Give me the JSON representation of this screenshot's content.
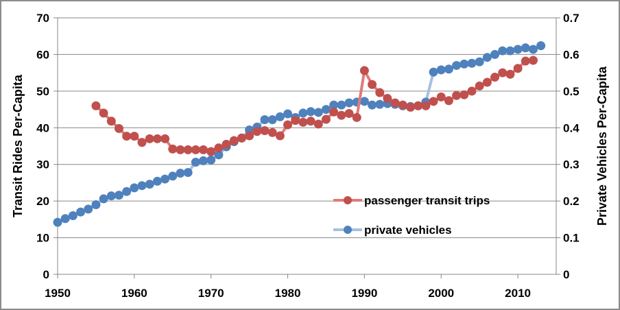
{
  "chart_data": {
    "type": "line",
    "title": "",
    "xlabel": "",
    "ylabel": "Transit Rides Per-Capita",
    "y2label": "Private Vehicles Per-Capita",
    "xlim": [
      1950,
      2015
    ],
    "ylim": [
      0,
      70
    ],
    "y2lim": [
      0,
      0.7
    ],
    "x_ticks": [
      "1950",
      "1960",
      "1970",
      "1980",
      "1990",
      "2000",
      "2010"
    ],
    "x_tick_values": [
      1950,
      1960,
      1970,
      1980,
      1990,
      2000,
      2010
    ],
    "y_ticks": [
      "0",
      "10",
      "20",
      "30",
      "40",
      "50",
      "60",
      "70"
    ],
    "y_tick_values": [
      0,
      10,
      20,
      30,
      40,
      50,
      60,
      70
    ],
    "y2_ticks": [
      "0",
      "0.1",
      "0.2",
      "0.3",
      "0.4",
      "0.5",
      "0.6",
      "0.7"
    ],
    "y2_tick_values": [
      0,
      0.1,
      0.2,
      0.3,
      0.4,
      0.5,
      0.6,
      0.7
    ],
    "grid": true,
    "legend_position": "center-right",
    "series": [
      {
        "name": "passenger transit trips",
        "axis": "primary",
        "color": "#c0504d",
        "line_color": "#e07b79",
        "x_start": 1955,
        "values": [
          46.0,
          44.0,
          41.8,
          39.8,
          37.7,
          37.7,
          36.0,
          37.0,
          37.0,
          37.0,
          34.2,
          34.0,
          34.0,
          34.0,
          34.0,
          33.5,
          34.5,
          35.5,
          36.5,
          37.2,
          37.8,
          39.0,
          39.2,
          38.7,
          37.8,
          40.8,
          42.0,
          41.5,
          41.8,
          41.0,
          42.3,
          44.3,
          43.4,
          43.9,
          42.8,
          55.6,
          51.8,
          49.6,
          48.0,
          46.8,
          46.2,
          45.6,
          46.0,
          46.0,
          47.2,
          48.4,
          47.4,
          48.8,
          49.0,
          50.0,
          51.4,
          52.4,
          53.8,
          55.0,
          54.6,
          56.2,
          58.2,
          58.4
        ]
      },
      {
        "name": "private vehicles",
        "axis": "secondary",
        "color": "#4f81bd",
        "line_color": "#a5c0e2",
        "x_start": 1950,
        "values": [
          0.142,
          0.152,
          0.16,
          0.17,
          0.178,
          0.19,
          0.206,
          0.214,
          0.216,
          0.226,
          0.236,
          0.242,
          0.246,
          0.254,
          0.26,
          0.268,
          0.276,
          0.278,
          0.306,
          0.31,
          0.312,
          0.326,
          0.348,
          0.362,
          0.372,
          0.394,
          0.402,
          0.422,
          0.422,
          0.43,
          0.438,
          0.428,
          0.44,
          0.444,
          0.442,
          0.45,
          0.462,
          0.462,
          0.468,
          0.47,
          0.472,
          0.462,
          0.464,
          0.466,
          0.464,
          0.46,
          0.458,
          0.46,
          0.47,
          0.552,
          0.558,
          0.56,
          0.57,
          0.574,
          0.576,
          0.58,
          0.592,
          0.6,
          0.61,
          0.61,
          0.614,
          0.618,
          0.614,
          0.624
        ]
      }
    ]
  }
}
